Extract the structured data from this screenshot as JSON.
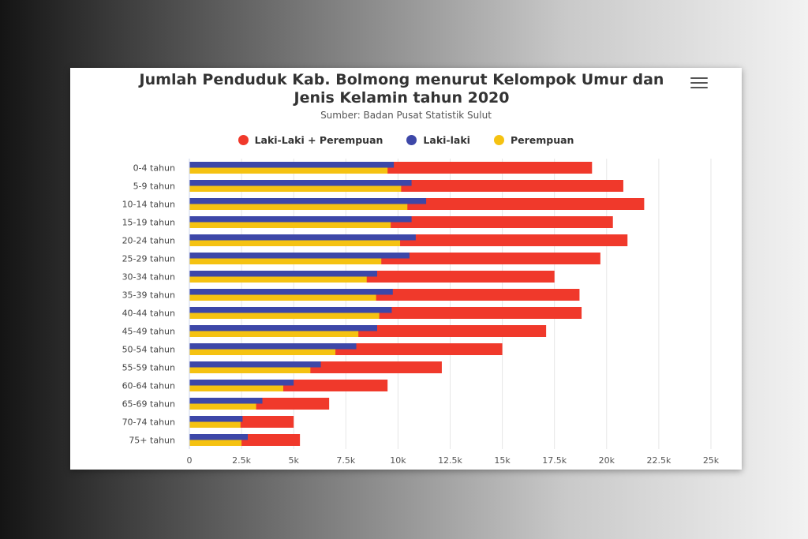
{
  "chart": {
    "title": "Jumlah Penduduk Kab. Bolmong menurut Kelompok Umur dan Jenis Kelamin tahun 2020",
    "subtitle": "Sumber: Badan Pusat Statistik Sulut",
    "menu_icon": "hamburger-menu-icon"
  },
  "chart_data": {
    "type": "bar",
    "orientation": "horizontal",
    "title": "Jumlah Penduduk Kab. Bolmong menurut Kelompok Umur dan Jenis Kelamin tahun 2020",
    "subtitle": "Sumber: Badan Pusat Statistik Sulut",
    "categories": [
      "0-4 tahun",
      "5-9 tahun",
      "10-14 tahun",
      "15-19 tahun",
      "20-24 tahun",
      "25-29 tahun",
      "30-34 tahun",
      "35-39 tahun",
      "40-44 tahun",
      "45-49 tahun",
      "50-54 tahun",
      "55-59 tahun",
      "60-64 tahun",
      "65-69 tahun",
      "70-74 tahun",
      "75+ tahun"
    ],
    "series": [
      {
        "name": "Laki-Laki + Perempuan",
        "color": "#f0392b",
        "values": [
          19300,
          20800,
          21800,
          20300,
          21000,
          19700,
          17500,
          18700,
          18800,
          17100,
          15000,
          12100,
          9500,
          6700,
          5000,
          5300
        ]
      },
      {
        "name": "Laki-laki",
        "color": "#3d47a8",
        "values": [
          9800,
          10650,
          11350,
          10650,
          10850,
          10550,
          9000,
          9750,
          9700,
          9000,
          8000,
          6300,
          5000,
          3500,
          2550,
          2800
        ]
      },
      {
        "name": "Perempuan",
        "color": "#f5c211",
        "values": [
          9500,
          10150,
          10450,
          9650,
          10100,
          9200,
          8500,
          8950,
          9100,
          8100,
          7000,
          5800,
          4500,
          3200,
          2450,
          2500
        ]
      }
    ],
    "xlim": [
      0,
      25000
    ],
    "ticks": [
      "0",
      "2.5k",
      "5k",
      "7.5k",
      "10k",
      "12.5k",
      "15k",
      "17.5k",
      "20k",
      "22.5k",
      "25k"
    ],
    "grid": true,
    "legend_position": "top"
  }
}
